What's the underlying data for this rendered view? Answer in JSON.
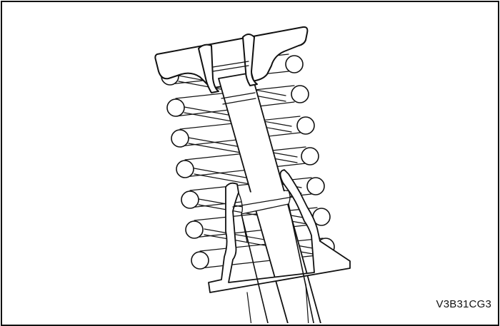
{
  "figure": {
    "code": "V3B31CG3"
  },
  "colors": {
    "line": "#111111",
    "background": "#ffffff"
  }
}
